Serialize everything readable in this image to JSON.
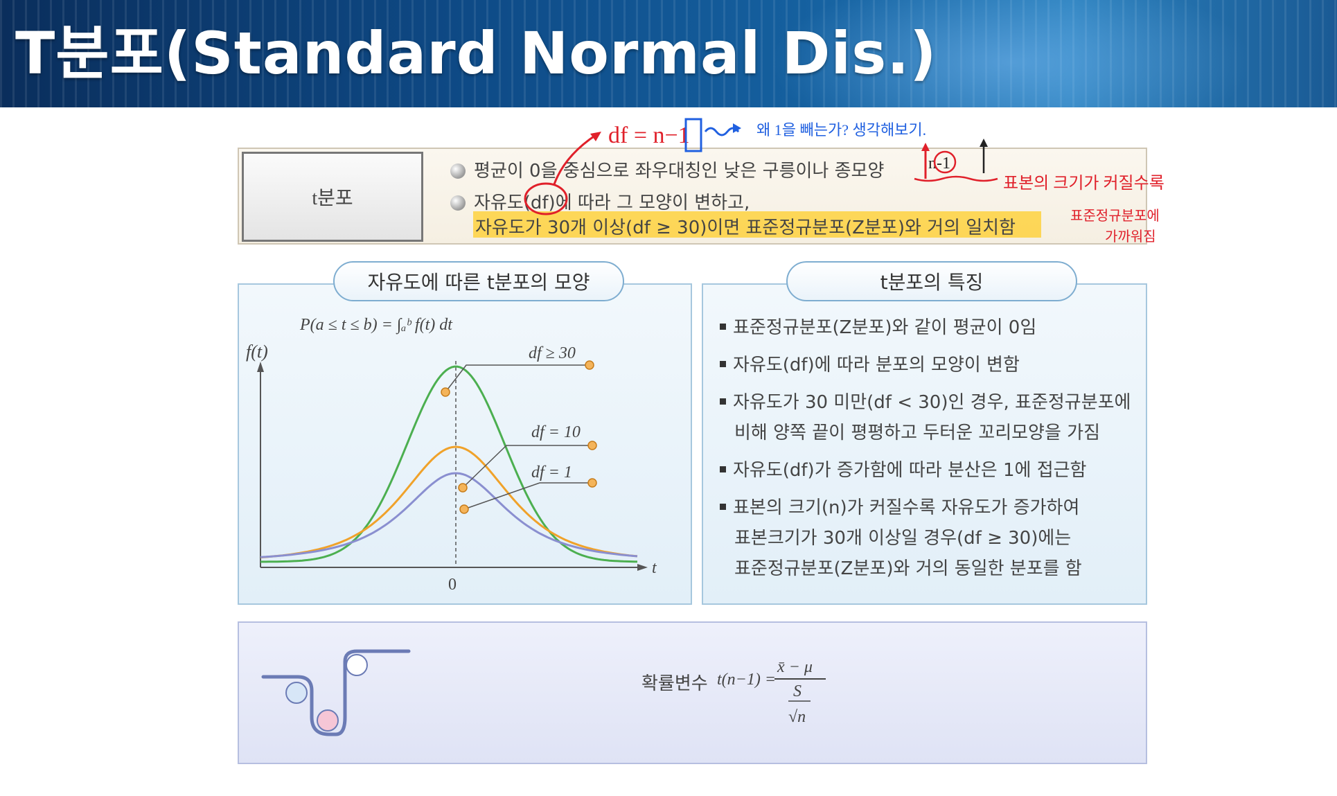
{
  "slide": {
    "title": "T분포(Standard  Normal  Dis.)"
  },
  "definition": {
    "label": "t분포",
    "line1": "평균이 0을 중심으로 좌우대칭인 낮은 구릉이나 종모양",
    "line2": "자유도(df)에 따라 그 모양이 변하고,",
    "line3": "자유도가 30개 이상(df ≥ 30)이면 표준정규분포(Z분포)와 거의 일치함"
  },
  "shape_panel": {
    "title": "자유도에 따른 t분포의 모양",
    "prob_formula": "P(a ≤ t ≤ b) = ∫ₐᵇ f(t) dt",
    "ylabel": "f(t)",
    "xlabel": "t",
    "origin": "0",
    "labels": [
      "df ≥ 30",
      "df = 10",
      "df = 1"
    ]
  },
  "features_panel": {
    "title": "t분포의 특징",
    "items": [
      "표준정규분포(Z분포)와 같이 평균이 0임",
      "자유도(df)에 따라 분포의 모양이 변함",
      "자유도가 30 미만(df < 30)인 경우, 표준정규분포에",
      "비해 양쪽 끝이 평평하고 두터운 꼬리모양을 가짐",
      "자유도(df)가 증가함에 따라 분산은 1에 접근함",
      "표본의 크기(n)가 커질수록 자유도가 증가하여",
      "표본크기가 30개 이상일 경우(df ≥ 30)에는",
      "표준정규분포(Z분포)와 거의 동일한 분포를 함"
    ]
  },
  "formula": {
    "label": "확률변수",
    "lhs": "t(n−1) =",
    "numerator": "x̄ − μ",
    "denominator_top": "S",
    "denominator_bottom": "√n"
  },
  "annotations": {
    "df_eq": "df = n−1",
    "question": "왜 1을 빼는가?  생각해보기.",
    "n_minus_1": "n-1",
    "note1": "표본의 크기가 커질수록",
    "note2": "표준정규분포에",
    "note3": "가까워짐"
  },
  "colors": {
    "green": "#4caf50",
    "orange": "#f0a22a",
    "purple": "#8a8fd0",
    "annotation_red": "#e0202a",
    "annotation_blue": "#2060e0"
  }
}
